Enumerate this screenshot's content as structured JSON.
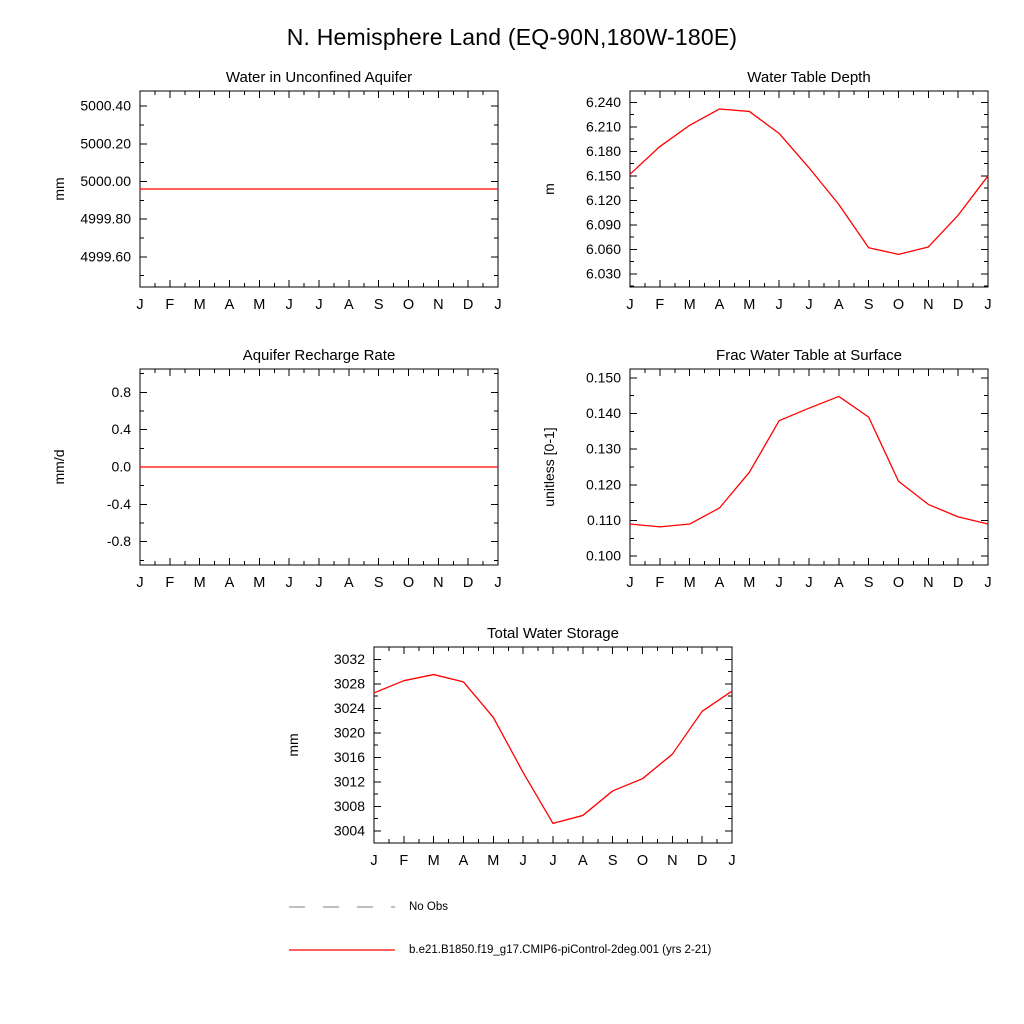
{
  "page_title": "N. Hemisphere Land (EQ-90N,180W-180E)",
  "months": [
    "J",
    "F",
    "M",
    "A",
    "M",
    "J",
    "J",
    "A",
    "S",
    "O",
    "N",
    "D",
    "J"
  ],
  "accent_color": "#ff0000",
  "legend": {
    "items": [
      {
        "label": "No Obs",
        "color": "#999999",
        "style": "dashed"
      },
      {
        "label": "b.e21.B1850.f19_g17.CMIP6-piControl-2deg.001 (yrs 2-21)",
        "color": "#ff0000",
        "style": "solid"
      }
    ]
  },
  "chart_data": [
    {
      "type": "line",
      "title": "Water in Unconfined Aquifer",
      "ylabel": "mm",
      "x": [
        "J",
        "F",
        "M",
        "A",
        "M",
        "J",
        "J",
        "A",
        "S",
        "O",
        "N",
        "D",
        "J"
      ],
      "ylim": [
        4999.44,
        5000.48
      ],
      "ytick_values": [
        4999.6,
        4999.8,
        5000.0,
        5000.2,
        5000.4
      ],
      "ytick_labels": [
        "4999.60",
        "4999.80",
        "5000.00",
        "5000.20",
        "5000.40"
      ],
      "grid": false,
      "legend_position": "none",
      "series": [
        {
          "name": "b.e21.B1850.f19_g17.CMIP6-piControl-2deg.001 (yrs 2-21)",
          "color": "#ff0000",
          "values": [
            4999.96,
            4999.96,
            4999.96,
            4999.96,
            4999.96,
            4999.96,
            4999.96,
            4999.96,
            4999.96,
            4999.96,
            4999.96,
            4999.96,
            4999.96
          ]
        }
      ]
    },
    {
      "type": "line",
      "title": "Water Table Depth",
      "ylabel": "m",
      "x": [
        "J",
        "F",
        "M",
        "A",
        "M",
        "J",
        "J",
        "A",
        "S",
        "O",
        "N",
        "D",
        "J"
      ],
      "ylim": [
        6.014,
        6.254
      ],
      "ytick_values": [
        6.03,
        6.06,
        6.09,
        6.12,
        6.15,
        6.18,
        6.21,
        6.24
      ],
      "ytick_labels": [
        "6.030",
        "6.060",
        "6.090",
        "6.120",
        "6.150",
        "6.180",
        "6.210",
        "6.240"
      ],
      "grid": false,
      "legend_position": "none",
      "series": [
        {
          "name": "b.e21.B1850.f19_g17.CMIP6-piControl-2deg.001 (yrs 2-21)",
          "color": "#ff0000",
          "values": [
            6.152,
            6.186,
            6.212,
            6.232,
            6.229,
            6.202,
            6.16,
            6.115,
            6.062,
            6.054,
            6.063,
            6.102,
            6.15
          ]
        }
      ]
    },
    {
      "type": "line",
      "title": "Aquifer Recharge Rate",
      "ylabel": "mm/d",
      "x": [
        "J",
        "F",
        "M",
        "A",
        "M",
        "J",
        "J",
        "A",
        "S",
        "O",
        "N",
        "D",
        "J"
      ],
      "ylim": [
        -1.05,
        1.05
      ],
      "ytick_values": [
        -0.8,
        -0.4,
        0.0,
        0.4,
        0.8
      ],
      "ytick_labels": [
        "-0.8",
        "-0.4",
        "0.0",
        "0.4",
        "0.8"
      ],
      "grid": false,
      "legend_position": "none",
      "series": [
        {
          "name": "b.e21.B1850.f19_g17.CMIP6-piControl-2deg.001 (yrs 2-21)",
          "color": "#ff0000",
          "values": [
            0.0,
            0.0,
            0.0,
            0.0,
            0.0,
            0.0,
            0.0,
            0.0,
            0.0,
            0.0,
            0.0,
            0.0,
            0.0
          ]
        }
      ]
    },
    {
      "type": "line",
      "title": "Frac Water Table at Surface",
      "ylabel": "unitless [0-1]",
      "x": [
        "J",
        "F",
        "M",
        "A",
        "M",
        "J",
        "J",
        "A",
        "S",
        "O",
        "N",
        "D",
        "J"
      ],
      "ylim": [
        0.0975,
        0.1525
      ],
      "ytick_values": [
        0.1,
        0.11,
        0.12,
        0.13,
        0.14,
        0.15
      ],
      "ytick_labels": [
        "0.100",
        "0.110",
        "0.120",
        "0.130",
        "0.140",
        "0.150"
      ],
      "grid": false,
      "legend_position": "none",
      "series": [
        {
          "name": "b.e21.B1850.f19_g17.CMIP6-piControl-2deg.001 (yrs 2-21)",
          "color": "#ff0000",
          "values": [
            0.109,
            0.1082,
            0.109,
            0.1135,
            0.1235,
            0.138,
            0.1415,
            0.1448,
            0.139,
            0.121,
            0.1145,
            0.111,
            0.109
          ]
        }
      ]
    },
    {
      "type": "line",
      "title": "Total Water Storage",
      "ylabel": "mm",
      "x": [
        "J",
        "F",
        "M",
        "A",
        "M",
        "J",
        "J",
        "A",
        "S",
        "O",
        "N",
        "D",
        "J"
      ],
      "ylim": [
        3002,
        3034
      ],
      "ytick_values": [
        3004,
        3008,
        3012,
        3016,
        3020,
        3024,
        3028,
        3032
      ],
      "ytick_labels": [
        "3004",
        "3008",
        "3012",
        "3016",
        "3020",
        "3024",
        "3028",
        "3032"
      ],
      "grid": false,
      "legend_position": "none",
      "series": [
        {
          "name": "b.e21.B1850.f19_g17.CMIP6-piControl-2deg.001 (yrs 2-21)",
          "color": "#ff0000",
          "values": [
            3026.5,
            3028.5,
            3029.5,
            3028.3,
            3022.5,
            3013.5,
            3005.2,
            3006.5,
            3010.5,
            3012.5,
            3016.5,
            3023.5,
            3026.8
          ]
        }
      ]
    }
  ]
}
